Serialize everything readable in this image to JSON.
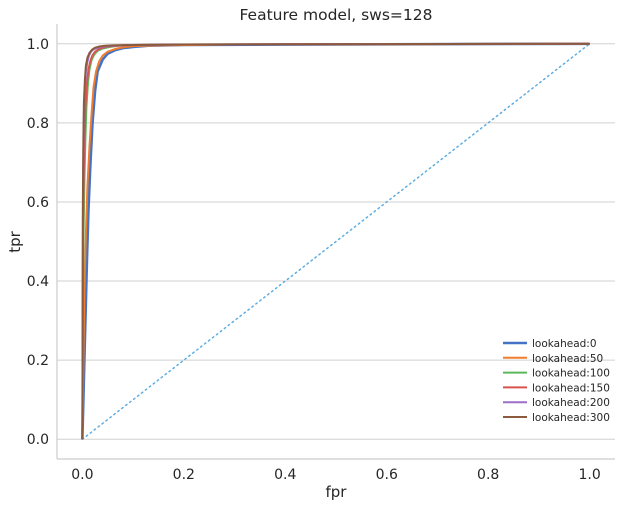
{
  "chart_data": {
    "type": "line",
    "title": "Feature model, sws=128",
    "xlabel": "fpr",
    "ylabel": "tpr",
    "xlim": [
      -0.05,
      1.05
    ],
    "ylim": [
      -0.05,
      1.05
    ],
    "xticks": [
      0.0,
      0.2,
      0.4,
      0.6,
      0.8,
      1.0
    ],
    "yticks": [
      0.0,
      0.2,
      0.4,
      0.6,
      0.8,
      1.0
    ],
    "xtick_labels": [
      "0.0",
      "0.2",
      "0.4",
      "0.6",
      "0.8",
      "1.0"
    ],
    "ytick_labels": [
      "0.0",
      "0.2",
      "0.4",
      "0.6",
      "0.8",
      "1.0"
    ],
    "grid": "horizontal",
    "legend_position": "lower-right",
    "reference_line": {
      "x": [
        0,
        1
      ],
      "y": [
        0,
        1
      ],
      "color": "#5dade2",
      "style": "dotted"
    },
    "series": [
      {
        "name": "lookahead:0",
        "color": "#4472c4",
        "x": [
          0,
          0.003,
          0.006,
          0.009,
          0.012,
          0.016,
          0.02,
          0.025,
          0.03,
          0.04,
          0.05,
          0.065,
          0.08,
          0.1,
          0.13,
          0.2,
          0.4,
          1.0
        ],
        "y": [
          0,
          0.15,
          0.3,
          0.45,
          0.58,
          0.7,
          0.8,
          0.88,
          0.93,
          0.96,
          0.975,
          0.984,
          0.989,
          0.992,
          0.995,
          0.997,
          0.998,
          1.0
        ]
      },
      {
        "name": "lookahead:50",
        "color": "#f07d2c",
        "x": [
          0,
          0.002,
          0.004,
          0.007,
          0.01,
          0.014,
          0.018,
          0.022,
          0.027,
          0.033,
          0.04,
          0.05,
          0.065,
          0.08,
          0.1,
          0.15,
          0.3,
          1.0
        ],
        "y": [
          0,
          0.2,
          0.38,
          0.52,
          0.64,
          0.74,
          0.82,
          0.89,
          0.93,
          0.955,
          0.97,
          0.98,
          0.987,
          0.991,
          0.994,
          0.996,
          0.998,
          1.0
        ]
      },
      {
        "name": "lookahead:100",
        "color": "#5cb85c",
        "x": [
          0,
          0.001,
          0.002,
          0.004,
          0.006,
          0.008,
          0.011,
          0.014,
          0.018,
          0.023,
          0.03,
          0.04,
          0.055,
          0.07,
          0.1,
          0.2,
          1.0
        ],
        "y": [
          0,
          0.3,
          0.5,
          0.65,
          0.76,
          0.84,
          0.9,
          0.935,
          0.958,
          0.972,
          0.982,
          0.988,
          0.992,
          0.995,
          0.997,
          0.998,
          1.0
        ]
      },
      {
        "name": "lookahead:150",
        "color": "#d9534f",
        "x": [
          0,
          0.001,
          0.002,
          0.004,
          0.006,
          0.009,
          0.012,
          0.016,
          0.02,
          0.025,
          0.032,
          0.04,
          0.05,
          0.07,
          0.1,
          0.2,
          1.0
        ],
        "y": [
          0,
          0.45,
          0.62,
          0.75,
          0.84,
          0.9,
          0.935,
          0.958,
          0.971,
          0.98,
          0.986,
          0.99,
          0.993,
          0.995,
          0.997,
          0.998,
          1.0
        ]
      },
      {
        "name": "lookahead:200",
        "color": "#9b6fc7",
        "x": [
          0,
          0.001,
          0.002,
          0.003,
          0.005,
          0.007,
          0.01,
          0.013,
          0.017,
          0.022,
          0.03,
          0.04,
          0.06,
          0.1,
          0.2,
          1.0
        ],
        "y": [
          0,
          0.55,
          0.72,
          0.82,
          0.89,
          0.93,
          0.955,
          0.97,
          0.98,
          0.986,
          0.99,
          0.993,
          0.995,
          0.997,
          0.998,
          1.0
        ]
      },
      {
        "name": "lookahead:300",
        "color": "#8c5a3c",
        "x": [
          0,
          0.001,
          0.002,
          0.003,
          0.005,
          0.007,
          0.01,
          0.014,
          0.019,
          0.025,
          0.033,
          0.045,
          0.06,
          0.1,
          0.2,
          1.0
        ],
        "y": [
          0,
          0.6,
          0.76,
          0.85,
          0.91,
          0.945,
          0.965,
          0.977,
          0.985,
          0.99,
          0.993,
          0.995,
          0.996,
          0.997,
          0.998,
          1.0
        ]
      }
    ]
  }
}
